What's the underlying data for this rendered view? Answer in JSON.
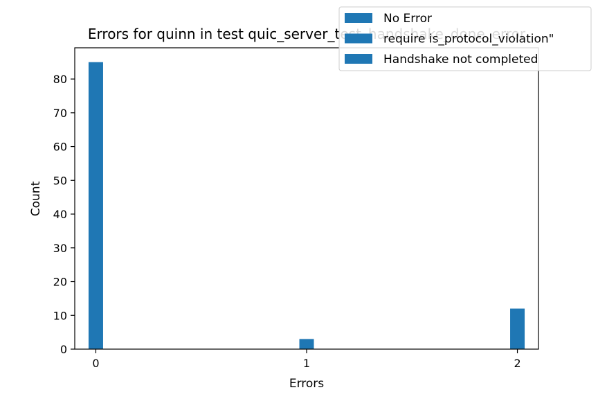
{
  "chart_data": {
    "type": "bar",
    "title": "Errors for quinn in test quic_server_test_handshake_done_error",
    "xlabel": "Errors",
    "ylabel": "Count",
    "x": [
      0,
      1,
      2
    ],
    "values": [
      85,
      3,
      12
    ],
    "xlim": [
      -0.1,
      2.1
    ],
    "ylim": [
      0,
      89.25
    ],
    "xticks": [
      "0",
      "1",
      "2"
    ],
    "yticks": [
      "0",
      "10",
      "20",
      "30",
      "40",
      "50",
      "60",
      "70",
      "80"
    ],
    "bar_color": "#1f77b4",
    "legend": {
      "placement": "top-right",
      "entries": [
        "No Error",
        "require is_protocol_violation\"",
        "Handshake not completed"
      ]
    },
    "grid": false
  }
}
